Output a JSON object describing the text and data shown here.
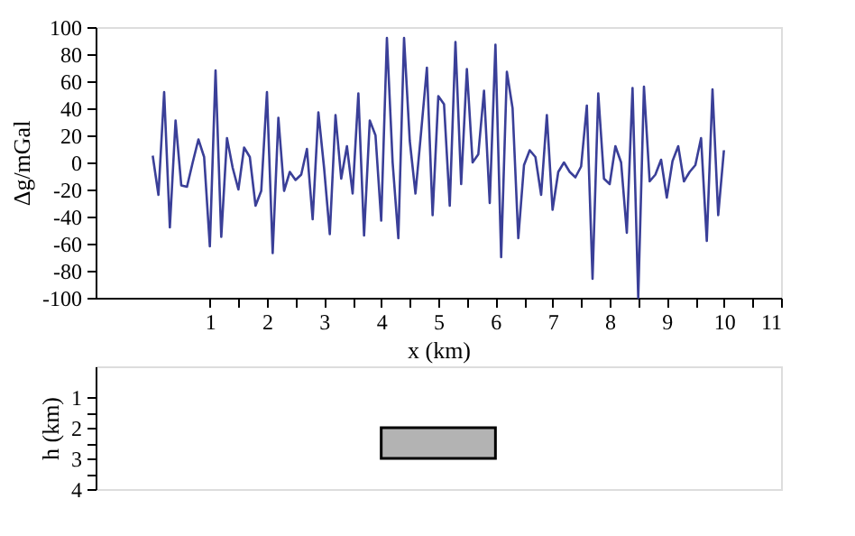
{
  "chart_data": [
    {
      "type": "line",
      "ylabel": "Δg/mGal",
      "xlabel": "x (km)",
      "xlim": [
        -1,
        11
      ],
      "xticks": [
        1,
        2,
        3,
        4,
        5,
        6,
        7,
        8,
        9,
        10,
        11,
        {
          "value": 1.5,
          "label": null
        },
        {
          "value": 2.5,
          "label": null
        },
        {
          "value": 3.5,
          "label": null
        },
        {
          "value": 4.5,
          "label": null
        },
        {
          "value": 5.5,
          "label": null
        },
        {
          "value": 6.5,
          "label": null
        },
        {
          "value": 7.5,
          "label": null
        },
        {
          "value": 8.5,
          "label": null
        },
        {
          "value": 9.5,
          "label": null
        },
        {
          "value": 10.5,
          "label": null
        }
      ],
      "ylim": [
        -100,
        100
      ],
      "yticks": [
        -100,
        -80,
        -60,
        -40,
        -20,
        0,
        20,
        40,
        60,
        80,
        100
      ],
      "grid": false,
      "line_style": "solid",
      "x": [
        0.0,
        0.1,
        0.2,
        0.3,
        0.4,
        0.5,
        0.6,
        0.7,
        0.8,
        0.9,
        1.0,
        1.1,
        1.2,
        1.3,
        1.4,
        1.5,
        1.6,
        1.7,
        1.8,
        1.9,
        2.0,
        2.1,
        2.2,
        2.3,
        2.4,
        2.5,
        2.6,
        2.7,
        2.8,
        2.9,
        3.0,
        3.1,
        3.2,
        3.3,
        3.4,
        3.5,
        3.6,
        3.7,
        3.8,
        3.9,
        4.0,
        4.1,
        4.2,
        4.3,
        4.4,
        4.5,
        4.6,
        4.7,
        4.8,
        4.9,
        5.0,
        5.1,
        5.2,
        5.3,
        5.4,
        5.5,
        5.6,
        5.7,
        5.8,
        5.9,
        6.0,
        6.1,
        6.2,
        6.3,
        6.4,
        6.5,
        6.6,
        6.7,
        6.8,
        6.9,
        7.0,
        7.1,
        7.2,
        7.3,
        7.4,
        7.5,
        7.6,
        7.7,
        7.8,
        7.9,
        8.0,
        8.1,
        8.2,
        8.3,
        8.4,
        8.5,
        8.6,
        8.7,
        8.8,
        8.9,
        9.0,
        9.1,
        9.2,
        9.3,
        9.4,
        9.5,
        9.6,
        9.7,
        9.8,
        9.9,
        10.0
      ],
      "series": [
        {
          "color": "#3a3f98",
          "values": [
            5,
            -24,
            52,
            -48,
            31,
            -17,
            -18,
            0,
            17,
            4,
            -62,
            68,
            -55,
            18,
            -4,
            -20,
            11,
            4,
            -32,
            -21,
            52,
            -67,
            33,
            -21,
            -7,
            -13,
            -9,
            10,
            -42,
            37,
            -4,
            -53,
            35,
            -12,
            12,
            -23,
            51,
            -54,
            31,
            20,
            -43,
            92,
            0,
            -56,
            92,
            16,
            -23,
            23,
            70,
            -39,
            49,
            43,
            -32,
            89,
            -16,
            69,
            0,
            6,
            53,
            -30,
            87,
            -70,
            67,
            40,
            -56,
            -2,
            9,
            4,
            -24,
            35,
            -35,
            -7,
            0,
            -7,
            -11,
            -3,
            42,
            -86,
            51,
            -12,
            -16,
            12,
            0,
            -52,
            55,
            -100,
            56,
            -14,
            -9,
            2,
            -26,
            1,
            12,
            -14,
            -7,
            -2,
            18,
            -58,
            54,
            -39,
            9
          ]
        }
      ]
    },
    {
      "type": "bar",
      "orientation": "horizontal",
      "ylabel": "h (km)",
      "xlim": [
        -1,
        11
      ],
      "ylim": [
        4,
        0
      ],
      "yticks": [
        1,
        2,
        3,
        4,
        {
          "value": 1.5,
          "label": null
        },
        {
          "value": 2.5,
          "label": null
        },
        {
          "value": 3.5,
          "label": null
        }
      ],
      "tick_labels": "y",
      "grid": false,
      "x": [
        2.5
      ],
      "base": [
        4
      ],
      "values": [
        2
      ],
      "colors": [
        "#b3b3b3"
      ]
    }
  ]
}
